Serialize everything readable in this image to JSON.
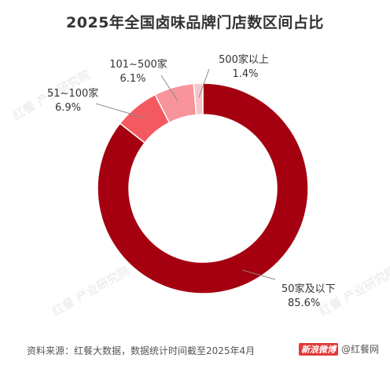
{
  "page": {
    "title": "2025年全国卤味品牌门店数区间占比",
    "source": "资料来源：红餐大数据，数据统计时间截至2025年4月",
    "brand_badge": "新浪微博",
    "brand_handle": "@红餐网",
    "watermark": "红餐 产业研究院"
  },
  "chart_data": {
    "type": "pie",
    "donut": true,
    "title": "2025年全国卤味品牌门店数区间占比",
    "slices": [
      {
        "label": "50家及以下",
        "value": 85.6,
        "value_label": "85.6%",
        "color": "#a50010"
      },
      {
        "label": "51~100家",
        "value": 6.9,
        "value_label": "6.9%",
        "color": "#f25a60"
      },
      {
        "label": "101~500家",
        "value": 6.1,
        "value_label": "6.1%",
        "color": "#f7949a"
      },
      {
        "label": "500家以上",
        "value": 1.4,
        "value_label": "1.4%",
        "color": "#f9c4c8"
      }
    ],
    "legend": "none"
  }
}
